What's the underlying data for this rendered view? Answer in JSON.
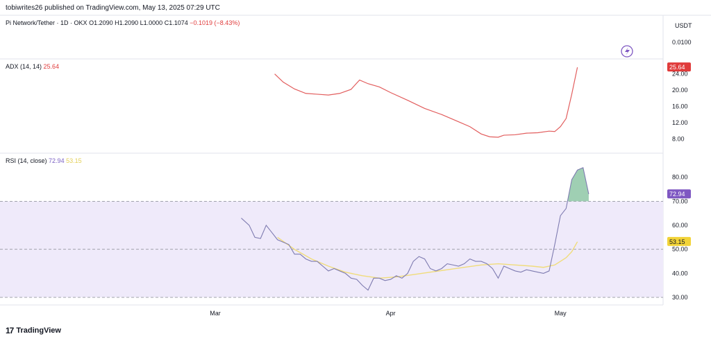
{
  "header": {
    "publisher": "tobiwrites26 published on TradingView.com, May 13, 2025 07:29 UTC"
  },
  "brand": {
    "name": "TradingView"
  },
  "chart_data": [
    {
      "type": "line",
      "panel": "price",
      "title": "Pi Network/Tether · 1D · OKX",
      "ohlc": {
        "open": "O1.2090",
        "high": "H1.2090",
        "low": "L1.0000",
        "close": "C1.1074",
        "change": "−0.1019 (−8.43%)"
      },
      "unit": "USDT",
      "y_tick_labels": [
        "0.0100"
      ],
      "colors": {
        "change": "#e03b3b"
      }
    },
    {
      "type": "line",
      "panel": "adx",
      "legend": {
        "label": "ADX (14, 14)",
        "value": "25.64"
      },
      "ylim": [
        6,
        26
      ],
      "y_ticks": [
        8,
        12,
        16,
        20,
        24
      ],
      "y_tick_labels": [
        "8.00",
        "12.00",
        "16.00",
        "20.00",
        "24.00"
      ],
      "last_value_label": "25.64",
      "colors": {
        "line": "#e25d5d",
        "badge": "#e03b3b"
      },
      "series": [
        {
          "values": [
            [
              10.5,
              24
            ],
            [
              12,
              22
            ],
            [
              14,
              20.3
            ],
            [
              16,
              19.2
            ],
            [
              18,
              19
            ],
            [
              20,
              18.8
            ],
            [
              22,
              19.2
            ],
            [
              24,
              20.2
            ],
            [
              25.5,
              22.5
            ],
            [
              27,
              21.6
            ],
            [
              29,
              20.8
            ],
            [
              31,
              19.4
            ],
            [
              34,
              17.5
            ],
            [
              37,
              15.5
            ],
            [
              40,
              14
            ],
            [
              43,
              12.2
            ],
            [
              45,
              11
            ],
            [
              47,
              9.2
            ],
            [
              48.5,
              8.5
            ],
            [
              50,
              8.4
            ],
            [
              51,
              8.9
            ],
            [
              53,
              9
            ],
            [
              55,
              9.4
            ],
            [
              57,
              9.5
            ],
            [
              59,
              9.9
            ],
            [
              60,
              9.8
            ],
            [
              61,
              11
            ],
            [
              62,
              13
            ],
            [
              63,
              19
            ],
            [
              64,
              25.64
            ]
          ]
        }
      ]
    },
    {
      "type": "line",
      "panel": "rsi",
      "legend": {
        "label": "RSI (14, close)",
        "rsi_value": "72.94",
        "ma_value": "53.15"
      },
      "ylim": [
        28,
        88
      ],
      "y_ticks": [
        30,
        40,
        50,
        60,
        70,
        80
      ],
      "y_tick_labels": [
        "30.00",
        "40.00",
        "50.00",
        "60.00",
        "70.00",
        "80.00"
      ],
      "reference_lines": [
        30,
        50,
        70
      ],
      "last_value_labels": {
        "rsi": "72.94",
        "ma": "53.15"
      },
      "colors": {
        "rsi": "#7e7bb0",
        "ma": "#f0dc7a",
        "band": "#efeafa",
        "overbought": "#7fbf9a",
        "rsi_badge": "#7e57c2",
        "ma_badge": "#f2d338"
      },
      "x_ticks": [
        {
          "label": "Mar",
          "x": 0
        },
        {
          "label": "Apr",
          "x": 31
        },
        {
          "label": "May",
          "x": 61
        }
      ],
      "series": [
        {
          "name": "RSI",
          "values": [
            [
              4.6,
              63
            ],
            [
              6,
              60
            ],
            [
              7,
              55
            ],
            [
              8,
              54.5
            ],
            [
              9,
              60
            ],
            [
              10,
              57
            ],
            [
              11,
              54
            ],
            [
              12,
              53
            ],
            [
              13,
              52
            ],
            [
              14,
              48
            ],
            [
              15,
              48
            ],
            [
              16,
              46
            ],
            [
              17,
              45
            ],
            [
              18,
              45
            ],
            [
              19,
              43
            ],
            [
              20,
              41
            ],
            [
              21,
              42
            ],
            [
              22,
              41
            ],
            [
              23,
              40
            ],
            [
              24,
              38
            ],
            [
              25,
              37.5
            ],
            [
              26,
              35
            ],
            [
              27,
              33
            ],
            [
              28,
              38
            ],
            [
              29,
              38
            ],
            [
              30,
              37
            ],
            [
              31,
              37.5
            ],
            [
              32,
              39
            ],
            [
              33,
              38
            ],
            [
              34,
              40
            ],
            [
              35,
              45
            ],
            [
              36,
              47
            ],
            [
              37,
              46
            ],
            [
              38,
              42
            ],
            [
              39,
              41
            ],
            [
              40,
              42
            ],
            [
              41,
              44
            ],
            [
              42,
              43.5
            ],
            [
              43,
              43
            ],
            [
              44,
              44
            ],
            [
              45,
              46
            ],
            [
              46,
              45
            ],
            [
              47,
              45
            ],
            [
              48,
              44
            ],
            [
              49,
              42
            ],
            [
              50,
              38
            ],
            [
              51,
              43
            ],
            [
              52,
              42
            ],
            [
              53,
              41
            ],
            [
              54,
              40.5
            ],
            [
              55,
              41.5
            ],
            [
              56,
              41
            ],
            [
              57,
              40.5
            ],
            [
              58,
              40
            ],
            [
              59,
              41
            ],
            [
              60,
              52
            ],
            [
              61,
              64
            ],
            [
              62,
              67
            ],
            [
              63,
              79
            ],
            [
              64,
              83
            ],
            [
              65,
              84
            ],
            [
              66,
              73
            ]
          ]
        },
        {
          "name": "RSI-based MA",
          "values": [
            [
              11,
              55
            ],
            [
              14,
              50
            ],
            [
              17,
              46
            ],
            [
              20,
              43
            ],
            [
              23,
              40.5
            ],
            [
              26,
              39
            ],
            [
              29,
              38
            ],
            [
              32,
              38.5
            ],
            [
              35,
              39.5
            ],
            [
              38,
              40.5
            ],
            [
              41,
              41.5
            ],
            [
              44,
              42.5
            ],
            [
              47,
              43.5
            ],
            [
              50,
              44
            ],
            [
              53,
              43.5
            ],
            [
              56,
              43
            ],
            [
              58,
              42.5
            ],
            [
              60,
              43.5
            ],
            [
              61,
              45
            ],
            [
              62,
              46.5
            ],
            [
              63,
              49
            ],
            [
              64,
              53.15
            ]
          ]
        }
      ]
    }
  ]
}
